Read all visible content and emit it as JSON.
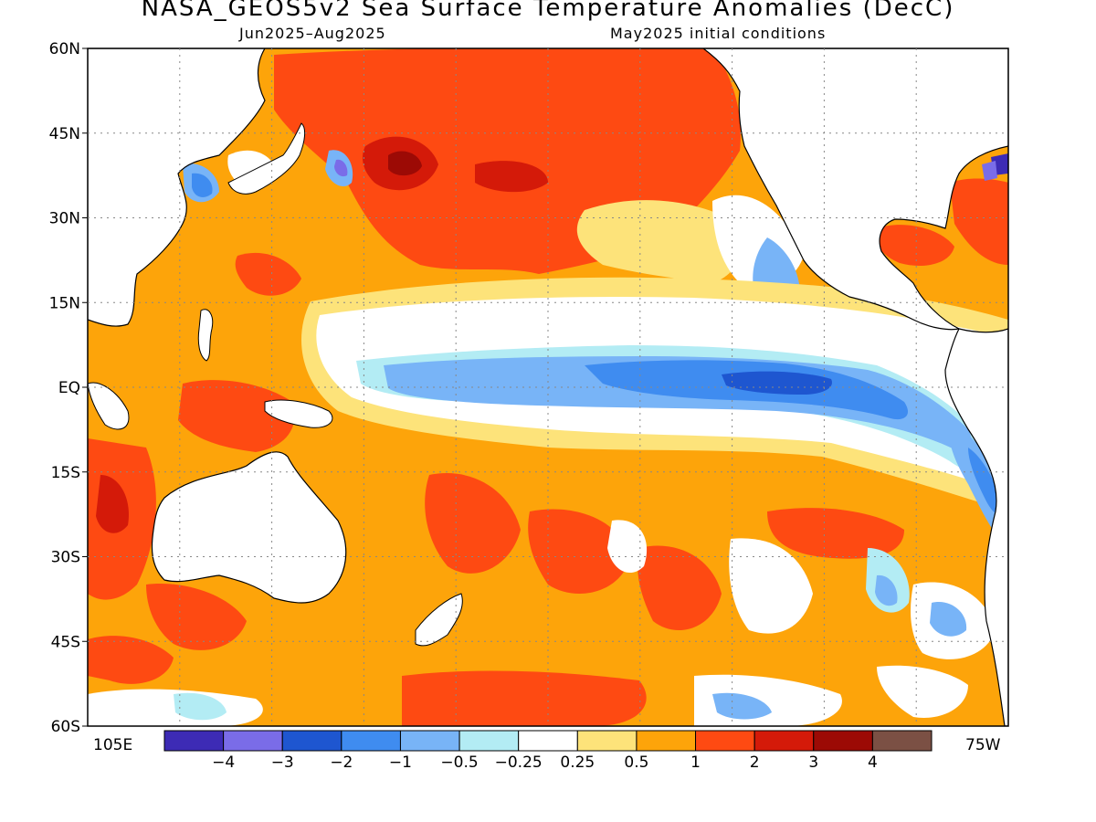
{
  "header": {
    "title": "NASA_GEOS5v2 Sea Surface Temperature Anomalies (DecC)",
    "period": "Jun2025–Aug2025",
    "init": "May2025 initial conditions"
  },
  "map": {
    "lat_labels": [
      "60N",
      "45N",
      "30N",
      "15N",
      "EQ",
      "15S",
      "30S",
      "45S",
      "60S"
    ],
    "lon_left": "105E",
    "lon_right": "75W",
    "lat_range": [
      -60,
      60
    ],
    "lon_range": [
      "105E",
      "75W"
    ],
    "grid": true
  },
  "colorbar": {
    "colors": [
      "#3d2bb5",
      "#7a6ce8",
      "#1e56d0",
      "#3f8cf0",
      "#78b4f7",
      "#b3ecf4",
      "#ffffff",
      "#fde37a",
      "#fda40a",
      "#fe4a12",
      "#d41a09",
      "#9c0a05",
      "#7b5044"
    ],
    "labels": [
      "−4",
      "−3",
      "−2",
      "−1",
      "−0.5",
      "−0.25",
      "0.25",
      "0.5",
      "1",
      "2",
      "3",
      "4"
    ]
  }
}
